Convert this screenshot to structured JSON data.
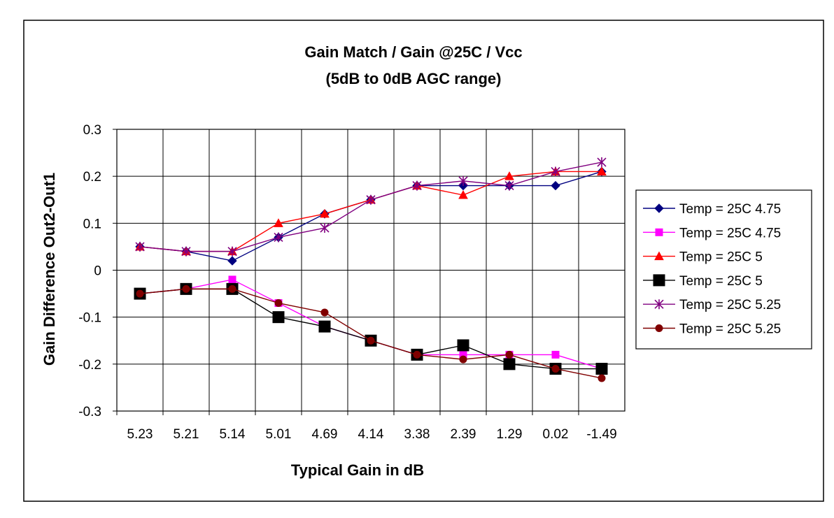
{
  "chart_data": {
    "type": "line",
    "title": "Gain Match / Gain @25C / Vcc",
    "subtitle": "(5dB to 0dB AGC range)",
    "xlabel": "Typical Gain in dB",
    "ylabel": "Gain Difference Out2-Out1",
    "categories": [
      "5.23",
      "5.21",
      "5.14",
      "5.01",
      "4.69",
      "4.14",
      "3.38",
      "2.39",
      "1.29",
      "0.02",
      "-1.49"
    ],
    "ylim": [
      -0.3,
      0.3
    ],
    "yticks": [
      "0.3",
      "0.2",
      "0.1",
      "0",
      "-0.1",
      "-0.2",
      "-0.3"
    ],
    "grid": true,
    "legend_position": "right",
    "series": [
      {
        "name": "Temp = 25C 4.75",
        "color": "#000080",
        "marker": "diamond",
        "values": [
          0.05,
          0.04,
          0.02,
          0.07,
          0.12,
          0.15,
          0.18,
          0.18,
          0.18,
          0.18,
          0.21
        ]
      },
      {
        "name": "Temp = 25C 4.75",
        "color": "#ff00ff",
        "marker": "square",
        "values": [
          -0.05,
          -0.04,
          -0.02,
          -0.07,
          -0.12,
          -0.15,
          -0.18,
          -0.18,
          -0.18,
          -0.18,
          -0.21
        ]
      },
      {
        "name": "Temp = 25C 5",
        "color": "#ff0000",
        "marker": "triangle",
        "values": [
          0.05,
          0.04,
          0.04,
          0.1,
          0.12,
          0.15,
          0.18,
          0.16,
          0.2,
          0.21,
          0.21
        ]
      },
      {
        "name": "Temp = 25C 5",
        "color": "#000000",
        "marker": "big-square",
        "values": [
          -0.05,
          -0.04,
          -0.04,
          -0.1,
          -0.12,
          -0.15,
          -0.18,
          -0.16,
          -0.2,
          -0.21,
          -0.21
        ]
      },
      {
        "name": "Temp = 25C 5.25",
        "color": "#800080",
        "marker": "star",
        "values": [
          0.05,
          0.04,
          0.04,
          0.07,
          0.09,
          0.15,
          0.18,
          0.19,
          0.18,
          0.21,
          0.23
        ]
      },
      {
        "name": "Temp = 25C 5.25",
        "color": "#800000",
        "marker": "circle",
        "values": [
          -0.05,
          -0.04,
          -0.04,
          -0.07,
          -0.09,
          -0.15,
          -0.18,
          -0.19,
          -0.18,
          -0.21,
          -0.23
        ]
      }
    ]
  }
}
